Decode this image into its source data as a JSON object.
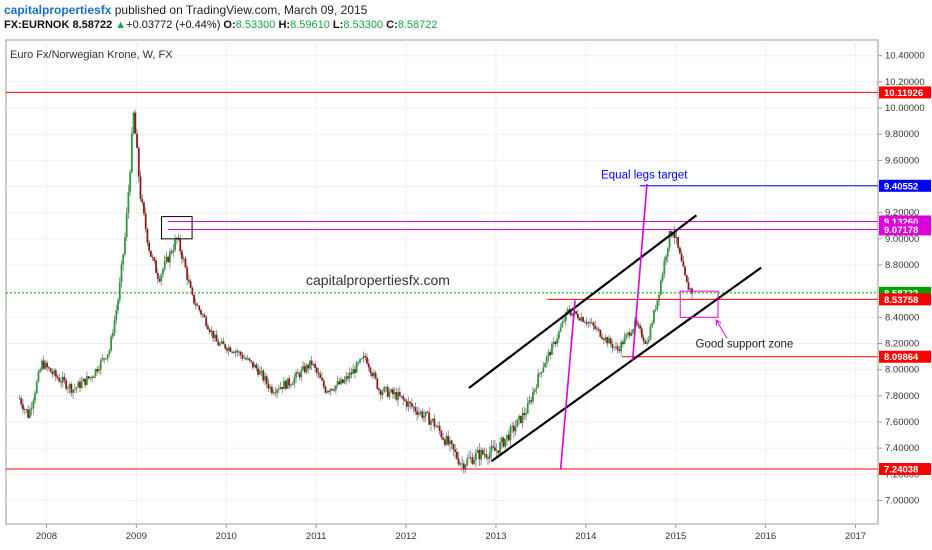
{
  "header": {
    "author": "capitalpropertiesfx",
    "published": "published on TradingView.com, March 09, 2015",
    "symbol": "FX:EURNOK",
    "last": "8.58722",
    "change": "+0.03772 (+0.44%)",
    "open_label": "O:",
    "open": "8.53300",
    "high_label": "H:",
    "high": "8.59610",
    "low_label": "L:",
    "low": "8.53300",
    "close_label": "C:",
    "close": "8.58722",
    "up_arrow": "▲"
  },
  "colors": {
    "up": "#2e9a3c",
    "down": "#8b1a1a",
    "wick": "#7a7a7a",
    "red_line": "#ff0000",
    "magenta": "#dd00dd",
    "blue": "#0000ff",
    "channel": "#000000",
    "current": "#00a000"
  },
  "chart_data": {
    "type": "candlestick",
    "title": "Euro Fx/Norwegian Krone, W, FX",
    "watermark": "capitalpropertiesfx.com",
    "x_axis": {
      "ticks": [
        "2008",
        "2009",
        "2010",
        "2011",
        "2012",
        "2013",
        "2014",
        "2015",
        "2016",
        "2017"
      ],
      "range": [
        2007.55,
        2017.25
      ]
    },
    "y_axis": {
      "ticks": [
        "7.00000",
        "7.20000",
        "7.40000",
        "7.60000",
        "7.80000",
        "8.00000",
        "8.20000",
        "8.40000",
        "8.60000",
        "8.80000",
        "9.00000",
        "9.20000",
        "9.40000",
        "9.60000",
        "9.80000",
        "10.00000",
        "10.20000",
        "10.40000"
      ],
      "range": [
        6.82,
        10.52
      ]
    },
    "price_path": [
      [
        2007.7,
        7.78
      ],
      [
        2007.8,
        7.65
      ],
      [
        2007.95,
        8.05
      ],
      [
        2008.1,
        7.95
      ],
      [
        2008.3,
        7.85
      ],
      [
        2008.5,
        7.95
      ],
      [
        2008.7,
        8.15
      ],
      [
        2008.8,
        8.55
      ],
      [
        2008.88,
        9.05
      ],
      [
        2008.97,
        9.95
      ],
      [
        2009.05,
        9.3
      ],
      [
        2009.15,
        8.9
      ],
      [
        2009.25,
        8.7
      ],
      [
        2009.35,
        8.85
      ],
      [
        2009.45,
        9.0
      ],
      [
        2009.52,
        8.85
      ],
      [
        2009.62,
        8.55
      ],
      [
        2009.75,
        8.4
      ],
      [
        2009.9,
        8.2
      ],
      [
        2010.1,
        8.15
      ],
      [
        2010.35,
        8.0
      ],
      [
        2010.5,
        7.85
      ],
      [
        2010.7,
        7.9
      ],
      [
        2010.95,
        8.05
      ],
      [
        2011.1,
        7.85
      ],
      [
        2011.3,
        7.9
      ],
      [
        2011.55,
        8.1
      ],
      [
        2011.7,
        7.85
      ],
      [
        2011.9,
        7.8
      ],
      [
        2012.1,
        7.7
      ],
      [
        2012.3,
        7.6
      ],
      [
        2012.5,
        7.4
      ],
      [
        2012.62,
        7.28
      ],
      [
        2012.8,
        7.35
      ],
      [
        2013.0,
        7.38
      ],
      [
        2013.2,
        7.55
      ],
      [
        2013.35,
        7.7
      ],
      [
        2013.5,
        8.0
      ],
      [
        2013.65,
        8.2
      ],
      [
        2013.8,
        8.45
      ],
      [
        2013.95,
        8.4
      ],
      [
        2014.05,
        8.35
      ],
      [
        2014.2,
        8.25
      ],
      [
        2014.35,
        8.15
      ],
      [
        2014.45,
        8.25
      ],
      [
        2014.55,
        8.35
      ],
      [
        2014.68,
        8.2
      ],
      [
        2014.8,
        8.55
      ],
      [
        2014.92,
        9.0
      ],
      [
        2014.97,
        9.08
      ],
      [
        2015.05,
        8.85
      ],
      [
        2015.12,
        8.65
      ],
      [
        2015.19,
        8.59
      ]
    ],
    "horizontal_levels": [
      {
        "value": 10.11926,
        "label": "10.11926",
        "color": "red",
        "x_start": 2007.55
      },
      {
        "value": 9.40552,
        "label": "9.40552",
        "color": "blue",
        "x_start": 2014.6
      },
      {
        "value": 9.1326,
        "label": "9.13260",
        "color": "magenta",
        "x_start": 2009.35
      },
      {
        "value": 9.07178,
        "label": "9.07178",
        "color": "magenta",
        "x_start": 2009.35
      },
      {
        "value": 8.58722,
        "label": "8.58722",
        "color": "current",
        "x_start": 2007.55
      },
      {
        "value": 8.53758,
        "label": "8.53758",
        "color": "red",
        "x_start": 2013.57
      },
      {
        "value": 8.09864,
        "label": "8.09864",
        "color": "red",
        "x_start": 2014.4
      },
      {
        "value": 7.24038,
        "label": "7.24038",
        "color": "red",
        "x_start": 2007.55
      }
    ],
    "trend_lines": [
      {
        "name": "channel-upper",
        "x1": 2012.7,
        "y1": 7.86,
        "x2": 2015.23,
        "y2": 9.18
      },
      {
        "name": "channel-lower",
        "x1": 2012.95,
        "y1": 7.3,
        "x2": 2015.95,
        "y2": 8.78
      },
      {
        "name": "leg-1",
        "x1": 2013.72,
        "y1": 7.24,
        "x2": 2013.88,
        "y2": 8.53
      },
      {
        "name": "leg-2",
        "x1": 2014.52,
        "y1": 8.07,
        "x2": 2014.68,
        "y2": 9.42
      }
    ],
    "boxes": [
      {
        "name": "resistance-box",
        "x1": 2009.28,
        "y1": 9.17,
        "x2": 2009.62,
        "y2": 9.0,
        "color": "black"
      },
      {
        "name": "support-box",
        "x1": 2015.05,
        "y1": 8.6,
        "x2": 2015.47,
        "y2": 8.4,
        "color": "magenta"
      }
    ],
    "annotations": [
      {
        "name": "equal-legs-target-label",
        "text": "Equal legs target",
        "x": 2014.65,
        "y": 9.46
      },
      {
        "name": "good-support-zone-label",
        "text": "Good support zone",
        "x": 2015.22,
        "y": 8.17
      }
    ],
    "support_arrow": {
      "x1": 2015.57,
      "y1": 8.24,
      "x2": 2015.45,
      "y2": 8.38
    }
  }
}
